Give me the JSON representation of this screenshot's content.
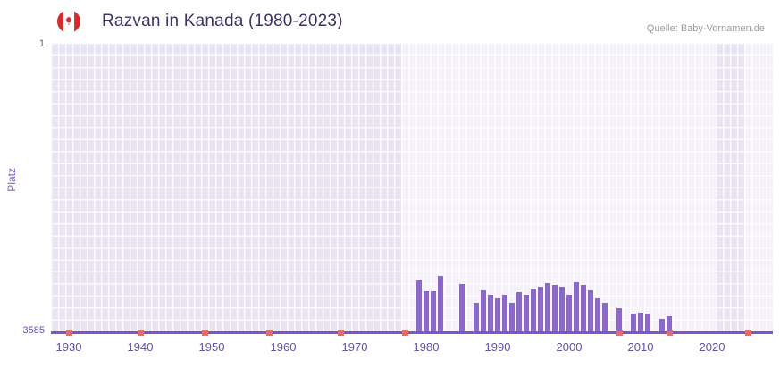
{
  "header": {
    "title": "Razvan in Kanada (1980-2023)",
    "source": "Quelle: Baby-Vornamen.de"
  },
  "chart_data": {
    "type": "bar",
    "title": "Razvan in Kanada (1980-2023)",
    "ylabel": "Platz",
    "xlabel": "",
    "y_axis": {
      "top_label": "1",
      "bottom_label": "3585",
      "min": 1,
      "max": 3585,
      "inverted": true
    },
    "x_ticks": [
      "1930",
      "1940",
      "1950",
      "1960",
      "1970",
      "1980",
      "1990",
      "2000",
      "2010",
      "2020"
    ],
    "x_range": [
      1927.5,
      2028.5
    ],
    "grid": true,
    "legend": "none",
    "series": [
      {
        "name": "Platz",
        "points": [
          [
            1979,
            2950
          ],
          [
            1980,
            3090
          ],
          [
            1981,
            3085
          ],
          [
            1982,
            2895
          ],
          [
            1985,
            3000
          ],
          [
            1987,
            3230
          ],
          [
            1988,
            3080
          ],
          [
            1989,
            3130
          ],
          [
            1990,
            3170
          ],
          [
            1991,
            3130
          ],
          [
            1992,
            3230
          ],
          [
            1993,
            3100
          ],
          [
            1994,
            3130
          ],
          [
            1995,
            3060
          ],
          [
            1996,
            3030
          ],
          [
            1997,
            2985
          ],
          [
            1998,
            3005
          ],
          [
            1999,
            3035
          ],
          [
            2000,
            3130
          ],
          [
            2001,
            2980
          ],
          [
            2002,
            3010
          ],
          [
            2003,
            3070
          ],
          [
            2004,
            3170
          ],
          [
            2005,
            3230
          ],
          [
            2007,
            3300
          ],
          [
            2009,
            3365
          ],
          [
            2010,
            3350
          ],
          [
            2011,
            3365
          ],
          [
            2013,
            3430
          ],
          [
            2014,
            3395
          ]
        ]
      }
    ],
    "axis_markers_years": [
      1930,
      1940,
      1949,
      1958,
      1968,
      1977,
      2007,
      2014,
      2025
    ],
    "highlight_bands": [
      [
        1976.5,
        2020.5
      ],
      [
        2024.5,
        2028.5
      ]
    ],
    "colors": {
      "bar": "#8a67c8",
      "axis": "#7d55c8",
      "marker": "#e96a6a",
      "plotbg": "#e9e4f2",
      "bandbg": "#f5f2fb",
      "tick": "#5d55a6",
      "title": "#3c3366",
      "source": "#9c9c9c",
      "ylab": "#7668c4",
      "flag_red": "#d52b2b"
    }
  }
}
